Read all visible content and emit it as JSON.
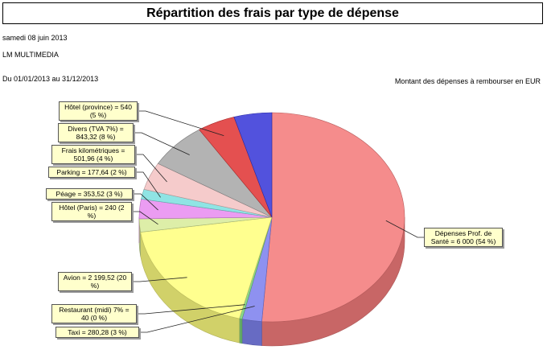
{
  "title": "Répartition des frais par type de dépense",
  "date": "samedi 08 juin 2013",
  "company": "LM MULTIMEDIA",
  "period": "Du 01/01/2013  au 31/12/2013",
  "subtitle": "Montant des dépenses à rembourser en EUR",
  "chart_data": {
    "type": "pie",
    "title": "Répartition des frais par type de dépense",
    "subtitle": "Montant des dépenses à rembourser en EUR",
    "slices": [
      {
        "label": "Dépenses Prof. de Santé = 6 000 (54 %)",
        "value": 6000,
        "percent": 54,
        "color": "#f47c7c"
      },
      {
        "label": "Taxi = 280,28 (3 %)",
        "value": 280.28,
        "percent": 3,
        "color": "#7e82ee"
      },
      {
        "label": "Restaurant (midi) 7% = 40 (0 %)",
        "value": 40,
        "percent": 0,
        "color": "#7ad27a"
      },
      {
        "label": "Avion = 2 199,52 (20 %)",
        "value": 2199.52,
        "percent": 20,
        "color": "#ffff80"
      },
      {
        "label": "Hôtel (Paris) = 240 (2 %)",
        "value": 240,
        "percent": 2,
        "color": "#d8ec9c"
      },
      {
        "label": "Péage = 353,52 (3 %)",
        "value": 353.52,
        "percent": 3,
        "color": "#e88ef0"
      },
      {
        "label": "Parking = 177,64 (2 %)",
        "value": 177.64,
        "percent": 2,
        "color": "#7fe0e0"
      },
      {
        "label": "Frais kilométriques = 501,96 (4 %)",
        "value": 501.96,
        "percent": 4,
        "color": "#f4c4c4"
      },
      {
        "label": "Divers (TVA 7%) = 843,32 (8 %)",
        "value": 843.32,
        "percent": 8,
        "color": "#a8a8a8"
      },
      {
        "label": "Hôtel (province) = 540 (5 %)",
        "value": 540,
        "percent": 5,
        "color": "#e03838"
      },
      {
        "label": "",
        "value": 540,
        "percent": 5,
        "color": "#3a3ad8"
      }
    ]
  }
}
